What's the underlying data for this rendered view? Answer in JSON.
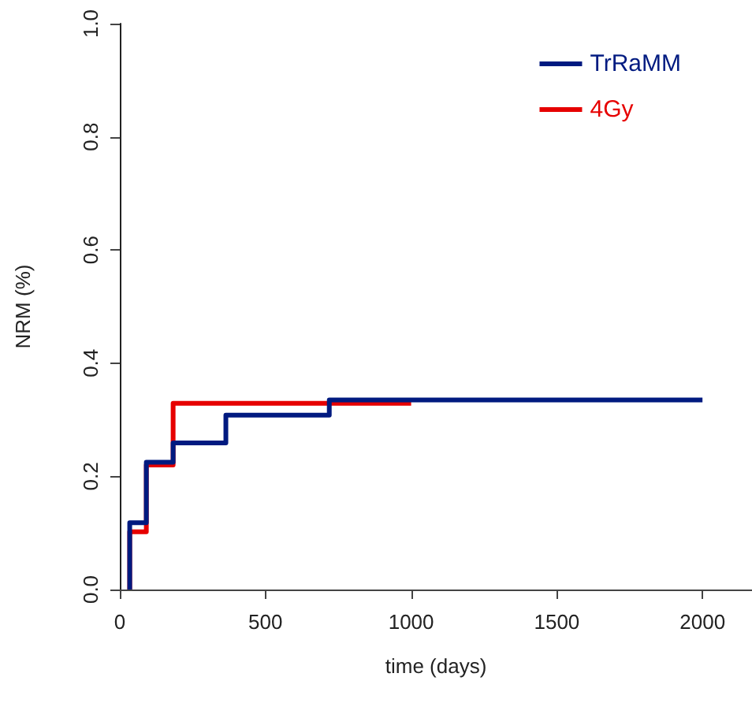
{
  "chart_data": {
    "type": "step",
    "xlabel": "time (days)",
    "ylabel": "NRM (%)",
    "xlim": [
      0,
      2170
    ],
    "xticks": [
      0,
      500,
      1000,
      1500,
      2000
    ],
    "ylim": [
      0,
      1
    ],
    "yticks": [
      {
        "value": 0,
        "label": "0.0"
      },
      {
        "value": 0.2,
        "label": "0.2"
      },
      {
        "value": 0.4,
        "label": "0.4"
      },
      {
        "value": 0.6,
        "label": "0.6"
      },
      {
        "value": 0.8,
        "label": "0.8"
      },
      {
        "value": 1,
        "label": "1.0"
      }
    ],
    "grid": false,
    "legend": "top right",
    "marker": "none",
    "line_style": "solid",
    "series": [
      {
        "name": "4Gy",
        "color": "#e60000",
        "x": [
          34,
          34,
          91,
          183,
          1000
        ],
        "values": [
          0,
          0.102,
          0.22,
          0.329,
          0.329
        ]
      },
      {
        "name": "TrRaMM",
        "color": "#001a80",
        "x": [
          34,
          34,
          91,
          183,
          364,
          719,
          2000
        ],
        "values": [
          0,
          0.118,
          0.225,
          0.259,
          0.308,
          0.335,
          0.335
        ]
      }
    ]
  }
}
